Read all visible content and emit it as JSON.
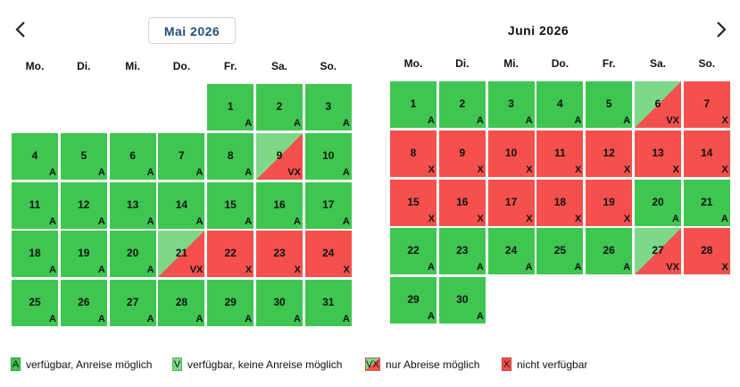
{
  "nav": {
    "prev_icon": "chevron-left-icon",
    "next_icon": "chevron-right-icon"
  },
  "weekdays": [
    "Mo.",
    "Di.",
    "Mi.",
    "Do.",
    "Fr.",
    "Sa.",
    "So."
  ],
  "months": [
    {
      "title": "Mai 2026",
      "offset": 4,
      "days": [
        "A",
        "A",
        "A",
        "A",
        "A",
        "A",
        "A",
        "A",
        "VX",
        "A",
        "A",
        "A",
        "A",
        "A",
        "A",
        "A",
        "A",
        "A",
        "A",
        "A",
        "VX",
        "X",
        "X",
        "X",
        "A",
        "A",
        "A",
        "A",
        "A",
        "A",
        "A"
      ]
    },
    {
      "title": "Juni 2026",
      "offset": 0,
      "days": [
        "A",
        "A",
        "A",
        "A",
        "A",
        "VX",
        "X",
        "X",
        "X",
        "X",
        "X",
        "X",
        "X",
        "X",
        "X",
        "X",
        "X",
        "X",
        "X",
        "A",
        "A",
        "A",
        "A",
        "A",
        "A",
        "A",
        "VX",
        "X",
        "A",
        "A"
      ]
    }
  ],
  "legend": [
    {
      "code": "A",
      "label": "verfügbar, Anreise möglich"
    },
    {
      "code": "V",
      "label": "verfügbar, keine Anreise möglich"
    },
    {
      "code": "VX",
      "label": "nur Abreise möglich"
    },
    {
      "code": "X",
      "label": "nicht verfügbar"
    }
  ],
  "colors": {
    "available": "#3ec651",
    "available_no_arrival": "#7dd889",
    "unavailable": "#f5504d"
  }
}
